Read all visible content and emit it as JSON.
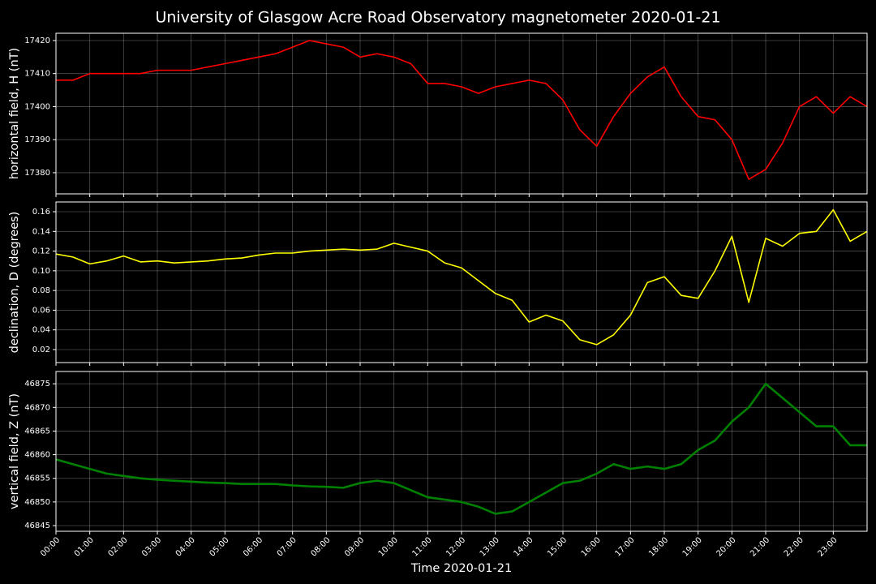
{
  "chart_data": [
    {
      "type": "line",
      "title": "University of Glasgow Acre Road Observatory magnetometer 2020-01-21",
      "ylabel": "horizontal field, H (nT)",
      "x": [
        0,
        0.5,
        1,
        1.5,
        2,
        2.5,
        3,
        3.5,
        4,
        4.5,
        5,
        5.5,
        6,
        6.5,
        7,
        7.5,
        8,
        8.5,
        9,
        9.5,
        10,
        10.5,
        11,
        11.5,
        12,
        12.5,
        13,
        13.5,
        14,
        14.5,
        15,
        15.5,
        16,
        16.5,
        17,
        17.5,
        18,
        18.5,
        19,
        19.5,
        20,
        20.5,
        21,
        21.5,
        22,
        22.5,
        23,
        23.5,
        24
      ],
      "series": [
        {
          "name": "H",
          "color": "#ff0000",
          "values": [
            17408,
            17408,
            17410,
            17410,
            17410,
            17410,
            17411,
            17411,
            17411,
            17412,
            17413,
            17414,
            17415,
            17416,
            17418,
            17420,
            17419,
            17418,
            17415,
            17416,
            17415,
            17413,
            17407,
            17407,
            17406,
            17404,
            17406,
            17407,
            17408,
            17407,
            17402,
            17393,
            17388,
            17397,
            17404,
            17409,
            17412,
            17403,
            17397,
            17396,
            17390,
            17378,
            17381,
            17389,
            17400,
            17403,
            17398,
            17403,
            17400
          ]
        }
      ],
      "xlim": [
        0,
        24
      ],
      "ylim": [
        17373.6,
        17422.2
      ],
      "yticks": [
        17380,
        17390,
        17400,
        17410,
        17420
      ],
      "grid": true
    },
    {
      "type": "line",
      "ylabel": "declination, D (degrees)",
      "x": [
        0,
        0.5,
        1,
        1.5,
        2,
        2.5,
        3,
        3.5,
        4,
        4.5,
        5,
        5.5,
        6,
        6.5,
        7,
        7.5,
        8,
        8.5,
        9,
        9.5,
        10,
        10.5,
        11,
        11.5,
        12,
        12.5,
        13,
        13.5,
        14,
        14.5,
        15,
        15.5,
        16,
        16.5,
        17,
        17.5,
        18,
        18.5,
        19,
        19.5,
        20,
        20.5,
        21,
        21.5,
        22,
        22.5,
        23,
        23.5,
        24
      ],
      "series": [
        {
          "name": "D",
          "color": "#ffff00",
          "values": [
            0.117,
            0.114,
            0.107,
            0.11,
            0.115,
            0.109,
            0.11,
            0.108,
            0.109,
            0.11,
            0.112,
            0.113,
            0.116,
            0.118,
            0.118,
            0.12,
            0.121,
            0.122,
            0.121,
            0.122,
            0.128,
            0.124,
            0.12,
            0.108,
            0.103,
            0.09,
            0.077,
            0.07,
            0.048,
            0.055,
            0.049,
            0.03,
            0.025,
            0.035,
            0.055,
            0.088,
            0.094,
            0.075,
            0.072,
            0.1,
            0.135,
            0.068,
            0.133,
            0.125,
            0.138,
            0.14,
            0.162,
            0.13,
            0.14
          ]
        }
      ],
      "xlim": [
        0,
        24
      ],
      "ylim": [
        0.0068,
        0.1699
      ],
      "yticks": [
        0.02,
        0.04,
        0.06,
        0.08,
        {
          "value": 0.1,
          "label": "0.10"
        },
        0.12,
        0.14,
        0.16
      ],
      "grid": true
    },
    {
      "type": "line",
      "ylabel": "vertical field, Z (nT)",
      "xlabel": "Time 2020-01-21",
      "x": [
        0,
        0.5,
        1,
        1.5,
        2,
        2.5,
        3,
        3.5,
        4,
        4.5,
        5,
        5.5,
        6,
        6.5,
        7,
        7.5,
        8,
        8.5,
        9,
        9.5,
        10,
        10.5,
        11,
        11.5,
        12,
        12.5,
        13,
        13.5,
        14,
        14.5,
        15,
        15.5,
        16,
        16.5,
        17,
        17.5,
        18,
        18.5,
        19,
        19.5,
        20,
        20.5,
        21,
        21.5,
        22,
        22.5,
        23,
        23.5,
        24
      ],
      "series": [
        {
          "name": "Z",
          "color": "#008000",
          "values": [
            46859,
            46858,
            46857,
            46856,
            46855.5,
            46855,
            46854.7,
            46854.5,
            46854.3,
            46854.1,
            46854,
            46853.8,
            46853.8,
            46853.8,
            46853.5,
            46853.3,
            46853.2,
            46853,
            46854,
            46854.5,
            46854,
            46852.5,
            46851,
            46850.5,
            46850,
            46849,
            46847.5,
            46848,
            46850,
            46852,
            46854,
            46854.5,
            46856,
            46858,
            46857,
            46857.5,
            46857,
            46858,
            46861,
            46863,
            46867,
            46870,
            46875,
            46872,
            46869,
            46866,
            46866,
            46862,
            46862
          ]
        }
      ],
      "xlim": [
        0,
        24
      ],
      "ylim": [
        46843.8,
        46877.6
      ],
      "yticks": [
        46845,
        46850,
        46855,
        46860,
        46865,
        46870,
        46875
      ],
      "grid": true,
      "xticks": [
        {
          "value": 0,
          "label": "00:00"
        },
        {
          "value": 1,
          "label": "01:00"
        },
        {
          "value": 2,
          "label": "02:00"
        },
        {
          "value": 3,
          "label": "03:00"
        },
        {
          "value": 4,
          "label": "04:00"
        },
        {
          "value": 5,
          "label": "05:00"
        },
        {
          "value": 6,
          "label": "06:00"
        },
        {
          "value": 7,
          "label": "07:00"
        },
        {
          "value": 8,
          "label": "08:00"
        },
        {
          "value": 9,
          "label": "09:00"
        },
        {
          "value": 10,
          "label": "10:00"
        },
        {
          "value": 11,
          "label": "11:00"
        },
        {
          "value": 12,
          "label": "12:00"
        },
        {
          "value": 13,
          "label": "13:00"
        },
        {
          "value": 14,
          "label": "14:00"
        },
        {
          "value": 15,
          "label": "15:00"
        },
        {
          "value": 16,
          "label": "16:00"
        },
        {
          "value": 17,
          "label": "17:00"
        },
        {
          "value": 18,
          "label": "18:00"
        },
        {
          "value": 19,
          "label": "19:00"
        },
        {
          "value": 20,
          "label": "20:00"
        },
        {
          "value": 21,
          "label": "21:00"
        },
        {
          "value": 22,
          "label": "22:00"
        },
        {
          "value": 23,
          "label": "23:00"
        }
      ]
    }
  ]
}
